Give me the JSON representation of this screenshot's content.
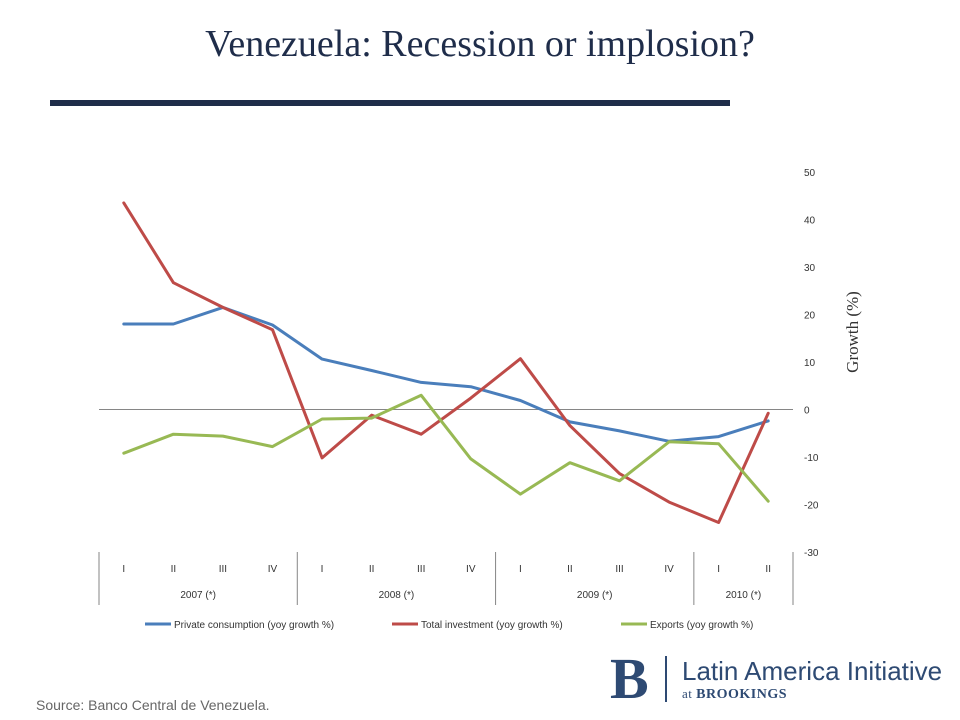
{
  "page": {
    "title": "Venezuela: Recession or implosion?",
    "source": "Source: Banco Central de Venezuela."
  },
  "logo": {
    "mark": "B",
    "name": "Latin America Initiative",
    "sub_prefix": "at ",
    "sub_brand": "BROOKINGS"
  },
  "chart_data": {
    "type": "line",
    "ylabel": "Growth (%)",
    "ylim": [
      -30,
      50
    ],
    "yticks": [
      50,
      40,
      30,
      20,
      10,
      0,
      -10,
      -20,
      -30
    ],
    "grid": false,
    "legend_position": "bottom",
    "quarters": [
      "I",
      "II",
      "III",
      "IV",
      "I",
      "II",
      "III",
      "IV",
      "I",
      "II",
      "III",
      "IV",
      "I",
      "II"
    ],
    "years": [
      {
        "label": "2007 (*)",
        "count": 4
      },
      {
        "label": "2008 (*)",
        "count": 4
      },
      {
        "label": "2009 (*)",
        "count": 4
      },
      {
        "label": "2010 (*)",
        "count": 2
      }
    ],
    "series": [
      {
        "name": "Private consumption (yoy growth %)",
        "color": "#4a7ebb",
        "values": [
          18.0,
          18.0,
          21.5,
          17.8,
          10.6,
          8.2,
          5.7,
          4.8,
          1.9,
          -2.6,
          -4.5,
          -6.7,
          -5.7,
          -2.4
        ]
      },
      {
        "name": "Total investment  (yoy growth %)",
        "color": "#be4b48",
        "values": [
          43.5,
          26.7,
          21.5,
          16.8,
          -10.2,
          -1.2,
          -5.2,
          2.4,
          10.7,
          -3.4,
          -13.5,
          -19.5,
          -23.8,
          -0.8
        ]
      },
      {
        "name": "Exports  (yoy growth %)",
        "color": "#98b954",
        "values": [
          -9.2,
          -5.2,
          -5.6,
          -7.8,
          -2.0,
          -1.8,
          3.0,
          -10.4,
          -17.8,
          -11.2,
          -15.0,
          -6.8,
          -7.2,
          -19.3
        ]
      }
    ]
  }
}
